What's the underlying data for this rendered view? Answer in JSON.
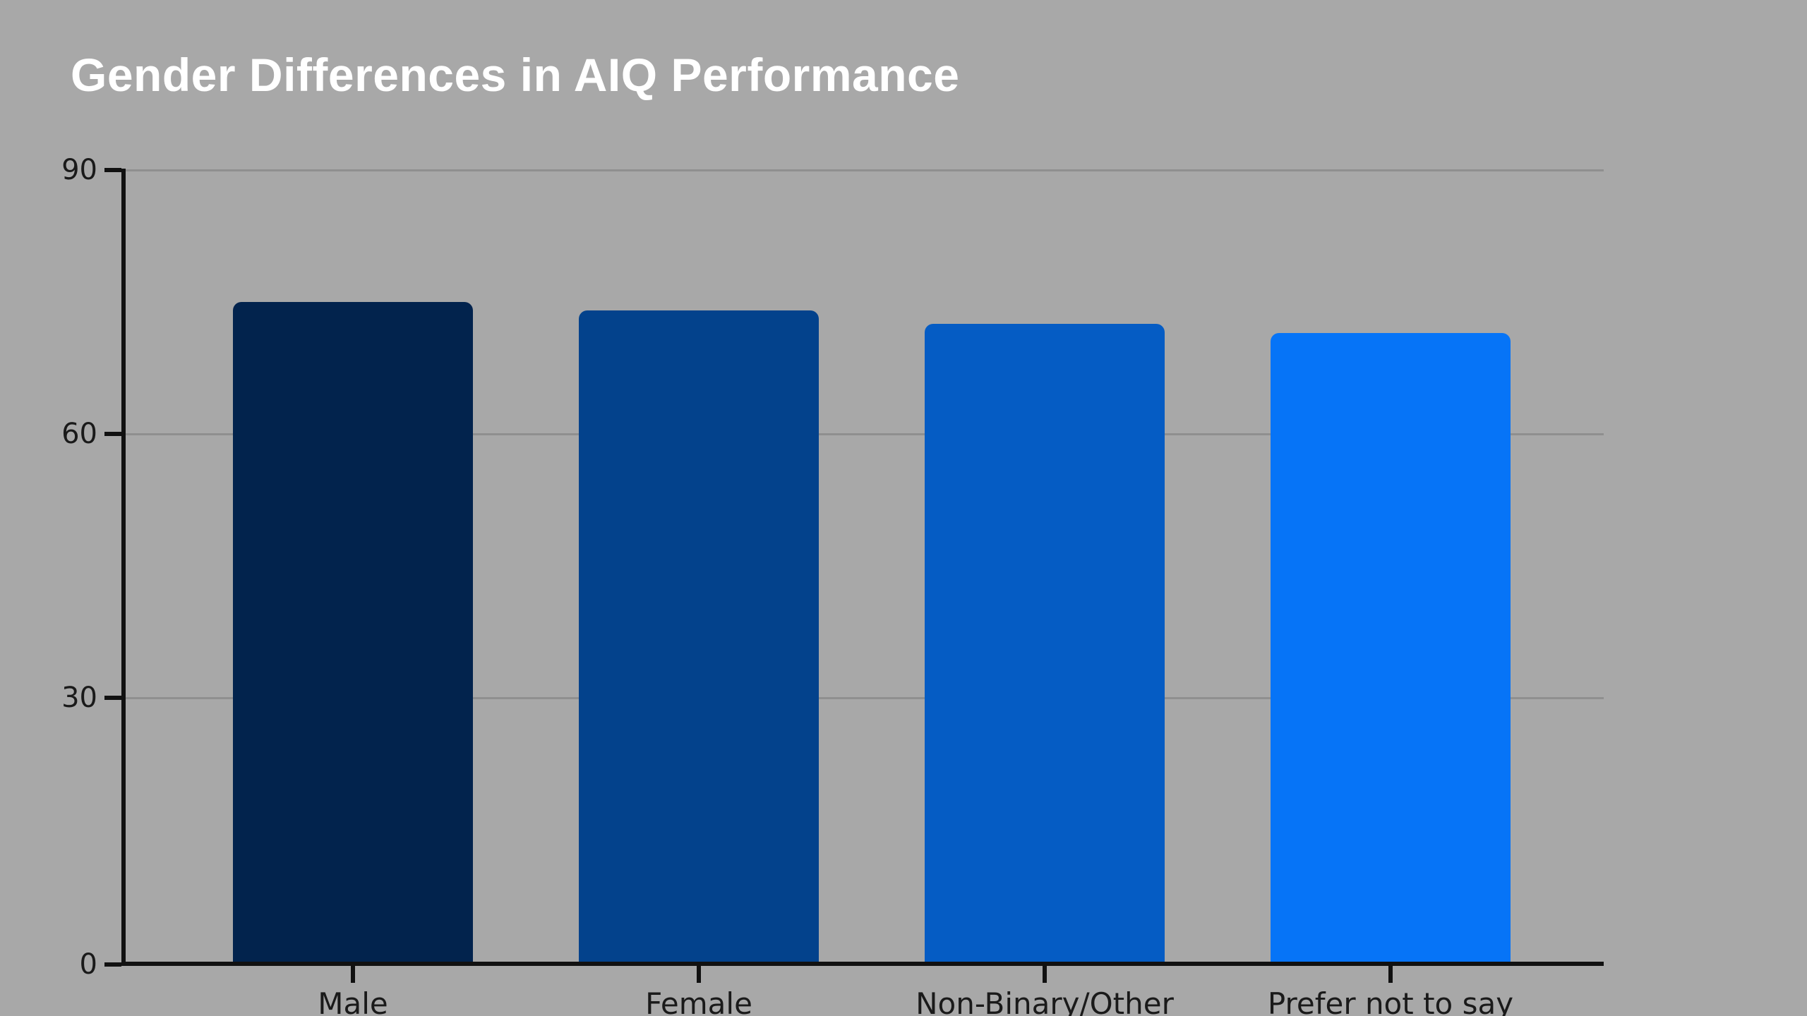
{
  "page": {
    "background_color": "#a8a8a8"
  },
  "chart_data": {
    "type": "bar",
    "title": "Gender Differences in AIQ Performance",
    "title_color": "#ffffff",
    "categories": [
      "Male",
      "Female",
      "Non-Binary/Other",
      "Prefer not to say"
    ],
    "values": [
      75,
      74,
      72.5,
      71.5
    ],
    "bar_colors": [
      "#02234d",
      "#03428c",
      "#055cc4",
      "#0674f7"
    ],
    "xlabel": "",
    "ylabel": "",
    "ylim": [
      0,
      90
    ],
    "yticks": [
      0,
      30,
      60,
      90
    ],
    "grid": true,
    "legend_position": "none",
    "axis_color": "#111111",
    "gridline_color": "#8f8f8f",
    "tick_label_color": "#1a1a1a",
    "background": "#a8a8a8"
  }
}
